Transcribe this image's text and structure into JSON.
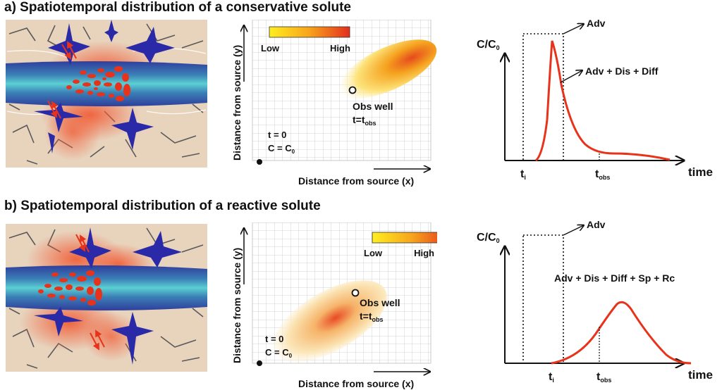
{
  "panel_a": {
    "title": "a) Spatiotemporal distribution of a conservative solute",
    "grid": {
      "legend_low": "Low",
      "legend_high": "High",
      "obs_well_label": "Obs well",
      "obs_t_prefix": "t=t",
      "obs_t_sub": "obs",
      "t0_label": "t = 0",
      "c0_prefix": "C = C",
      "c0_sub": "0",
      "xlabel": "Distance from source (x)",
      "ylabel": "Distance from source (y)"
    },
    "breakthrough": {
      "ylabel_prefix": "C/C",
      "ylabel_sub": "0",
      "xlabel": "time",
      "adv_label": "Adv",
      "curve_label": "Adv + Dis + Diff",
      "ti_prefix": "t",
      "ti_sub": "i",
      "tobs_prefix": "t",
      "tobs_sub": "obs"
    }
  },
  "panel_b": {
    "title": "b) Spatiotemporal distribution of a reactive solute",
    "grid": {
      "legend_low": "Low",
      "legend_high": "High",
      "obs_well_label": "Obs well",
      "obs_t_prefix": "t=t",
      "obs_t_sub": "obs",
      "t0_label": "t = 0",
      "c0_prefix": "C = C",
      "c0_sub": "0",
      "xlabel": "Distance from source (x)",
      "ylabel": "Distance from source (y)"
    },
    "breakthrough": {
      "ylabel_prefix": "C/C",
      "ylabel_sub": "0",
      "xlabel": "time",
      "adv_label": "Adv",
      "curve_label": "Adv + Dis + Diff + Sp + Rc",
      "ti_prefix": "t",
      "ti_sub": "i",
      "tobs_prefix": "t",
      "tobs_sub": "obs"
    }
  },
  "colors": {
    "plume_low": "#ffe900",
    "plume_high": "#e8321a",
    "curve": "#e8321a",
    "water_core": "#5ad0d2",
    "water_edge": "#2f3e9c",
    "rock": "#e8d3bd",
    "fracture": "#2a2aa8"
  }
}
